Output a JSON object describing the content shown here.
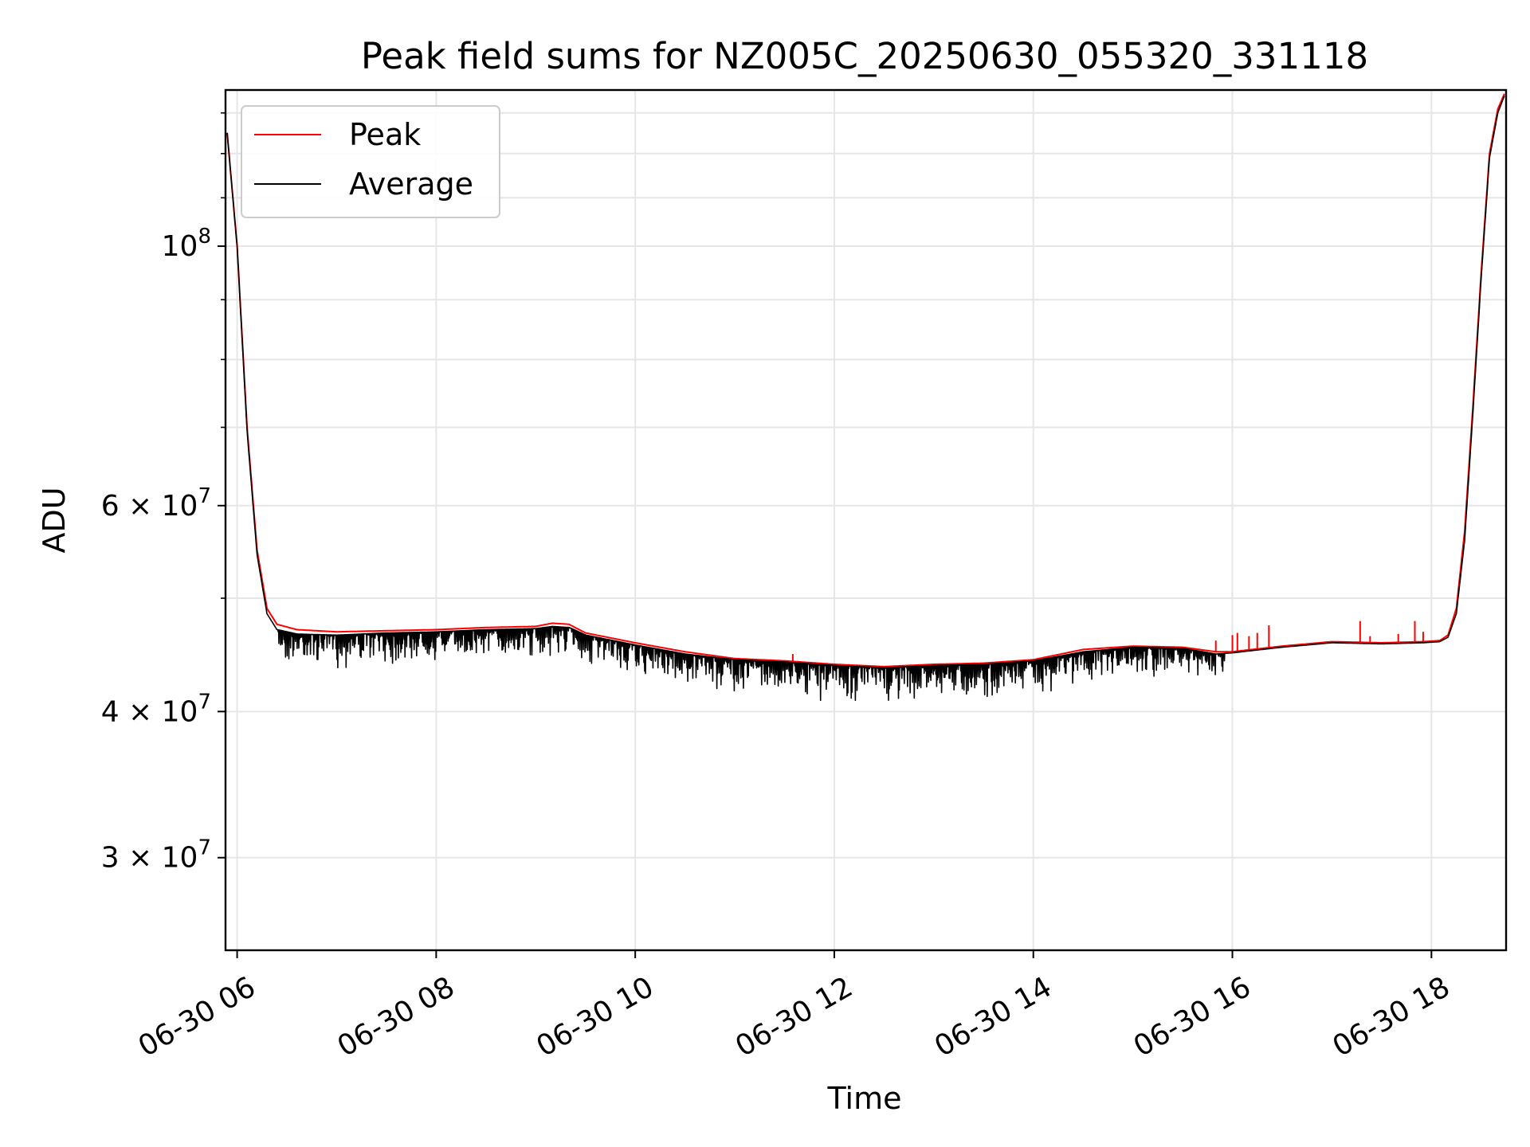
{
  "chart_data": {
    "type": "line",
    "title": "Peak field sums for NZ005C_20250630_055320_331118",
    "xlabel": "Time",
    "ylabel": "ADU",
    "yscale": "log",
    "xlim": [
      "2025-06-30 05:53",
      "2025-06-30 18:45"
    ],
    "ylim": [
      25000000,
      136000000
    ],
    "grid": true,
    "legend": {
      "placement": "upper-left",
      "entries": [
        "Peak",
        "Average"
      ]
    },
    "x_ticks": [
      "06-30 06",
      "06-30 08",
      "06-30 10",
      "06-30 12",
      "06-30 14",
      "06-30 16",
      "06-30 18"
    ],
    "y_ticks": [
      {
        "value": 100000000,
        "base": "10",
        "exp": "8"
      },
      {
        "value": 60000000,
        "base": "6 × 10",
        "exp": "7"
      },
      {
        "value": 40000000,
        "base": "4 × 10",
        "exp": "7"
      },
      {
        "value": 30000000,
        "base": "3 × 10",
        "exp": "7"
      }
    ],
    "series": [
      {
        "name": "Peak",
        "color": "#ff0000",
        "x": [
          "05:54",
          "06:00",
          "06:06",
          "06:12",
          "06:18",
          "06:24",
          "06:36",
          "07:00",
          "07:30",
          "08:00",
          "08:30",
          "09:00",
          "09:10",
          "09:20",
          "09:30",
          "10:00",
          "10:30",
          "11:00",
          "11:30",
          "12:00",
          "12:30",
          "13:00",
          "13:30",
          "14:00",
          "14:30",
          "15:00",
          "15:30",
          "15:50",
          "16:00",
          "16:30",
          "17:00",
          "17:30",
          "17:55",
          "18:05",
          "18:10",
          "18:15",
          "18:20",
          "18:25",
          "18:30",
          "18:35",
          "18:40",
          "18:44"
        ],
        "values": [
          125000000,
          100000000,
          70000000,
          55000000,
          49000000,
          47500000,
          47000000,
          46800000,
          46900000,
          47000000,
          47200000,
          47300000,
          47600000,
          47500000,
          46700000,
          45800000,
          45000000,
          44400000,
          44200000,
          43900000,
          43700000,
          43900000,
          44000000,
          44300000,
          45200000,
          45500000,
          45400000,
          45000000,
          45000000,
          45500000,
          45900000,
          45800000,
          45900000,
          46000000,
          46500000,
          49000000,
          57000000,
          73000000,
          95000000,
          120000000,
          131000000,
          135000000
        ],
        "spikes": [
          {
            "x": "11:35",
            "value": 44800000
          },
          {
            "x": "15:50",
            "value": 46000000
          },
          {
            "x": "16:00",
            "value": 46500000
          },
          {
            "x": "16:03",
            "value": 46700000
          },
          {
            "x": "16:10",
            "value": 46400000
          },
          {
            "x": "16:15",
            "value": 46700000
          },
          {
            "x": "16:22",
            "value": 47400000
          },
          {
            "x": "17:17",
            "value": 47800000
          },
          {
            "x": "17:23",
            "value": 46400000
          },
          {
            "x": "17:40",
            "value": 46600000
          },
          {
            "x": "17:50",
            "value": 47800000
          },
          {
            "x": "17:55",
            "value": 46800000
          }
        ]
      },
      {
        "name": "Average",
        "color": "#000000",
        "x": [
          "05:54",
          "06:00",
          "06:06",
          "06:12",
          "06:18",
          "06:24",
          "06:36",
          "07:00",
          "07:30",
          "08:00",
          "08:30",
          "09:00",
          "09:10",
          "09:20",
          "09:30",
          "10:00",
          "10:30",
          "11:00",
          "11:30",
          "12:00",
          "12:30",
          "13:00",
          "13:30",
          "14:00",
          "14:30",
          "15:00",
          "15:30",
          "15:50",
          "16:00",
          "16:30",
          "17:00",
          "17:30",
          "17:55",
          "18:05",
          "18:10",
          "18:15",
          "18:20",
          "18:25",
          "18:30",
          "18:35",
          "18:40",
          "18:44"
        ],
        "values": [
          125000000,
          100000000,
          69500000,
          54500000,
          48500000,
          47000000,
          46600000,
          46500000,
          46700000,
          46800000,
          47000000,
          47100000,
          47300000,
          47200000,
          46500000,
          45600000,
          44800000,
          44300000,
          44100000,
          43800000,
          43600000,
          43800000,
          43900000,
          44200000,
          45000000,
          45400000,
          45300000,
          44800000,
          44900000,
          45400000,
          45800000,
          45700000,
          45800000,
          45900000,
          46300000,
          48500000,
          56000000,
          72000000,
          94000000,
          119000000,
          130000000,
          134500000
        ],
        "noise_band": {
          "x_range": [
            "06:24",
            "15:55"
          ],
          "min_dips": 1500000
        }
      }
    ]
  }
}
